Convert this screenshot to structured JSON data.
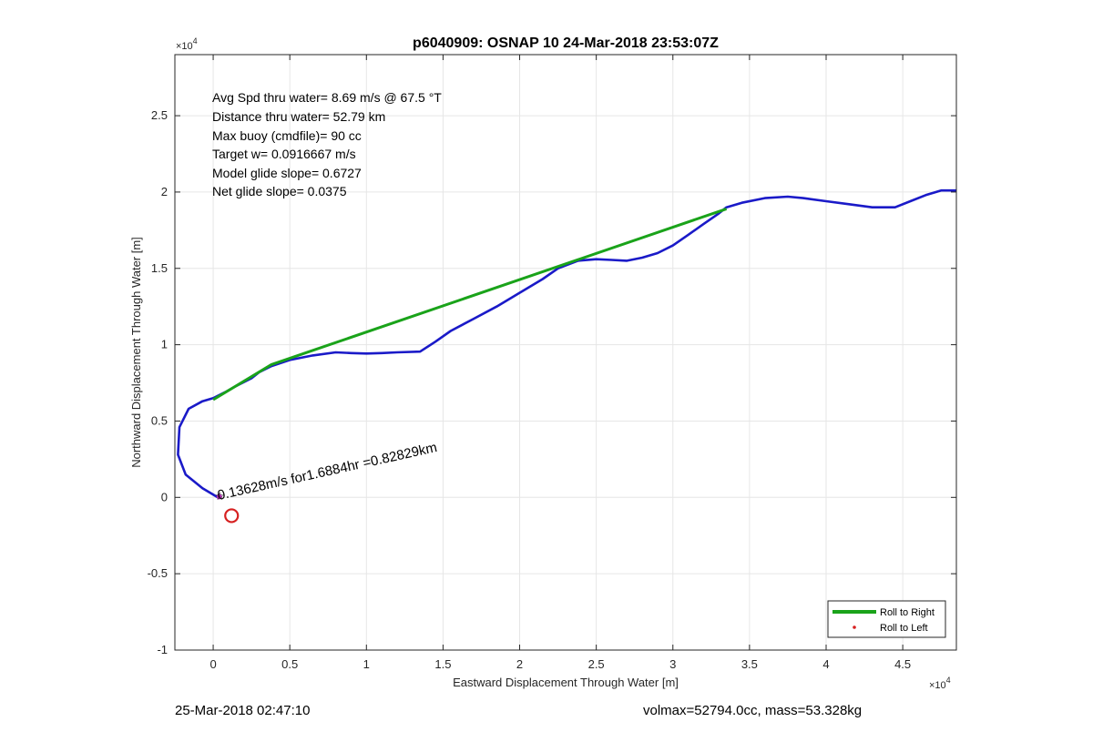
{
  "chart_data": {
    "type": "line",
    "title": "p6040909: OSNAP 10 24-Mar-2018 23:53:07Z",
    "xlabel": "Eastward Displacement Through Water [m]",
    "ylabel": "Northward Displacement Through Water [m]",
    "x_exponent_label": "×10",
    "x_exponent_sup": "4",
    "y_exponent_label": "×10",
    "y_exponent_sup": "4",
    "xlim": [
      -2500,
      48500
    ],
    "ylim": [
      -10000,
      29000
    ],
    "x_ticks": [
      0,
      5000,
      10000,
      15000,
      20000,
      25000,
      30000,
      35000,
      40000,
      45000
    ],
    "x_tick_labels": [
      "0",
      "0.5",
      "1",
      "1.5",
      "2",
      "2.5",
      "3",
      "3.5",
      "4",
      "4.5"
    ],
    "y_ticks": [
      -10000,
      -5000,
      0,
      5000,
      10000,
      15000,
      20000,
      25000
    ],
    "y_tick_labels": [
      "-1",
      "-0.5",
      "0",
      "0.5",
      "1",
      "1.5",
      "2",
      "2.5"
    ],
    "grid": true,
    "legend_position": "bottom-right",
    "annotations": [
      "Avg Spd thru water=  8.69 m/s @  67.5 °T",
      "Distance thru water= 52.79 km",
      "Max buoy (cmdfile)= 90 cc",
      "Target w= 0.0916667 m/s",
      "Model glide slope= 0.6727",
      "Net glide slope= 0.0375"
    ],
    "current_label": "0.13628m/s for1.6884hr =0.82829km",
    "series": [
      {
        "name": "Roll to Right",
        "color": "#1aa31a",
        "x": [
          0,
          3800,
          33500
        ],
        "y": [
          6400,
          8700,
          18900
        ]
      },
      {
        "name": "Roll to Left",
        "color": "#d62020",
        "x": [],
        "y": []
      },
      {
        "name": "",
        "color": "#1a1ac8",
        "x": [
          300,
          -700,
          -1800,
          -2300,
          -2200,
          -1600,
          -700,
          0,
          800,
          1500,
          2500,
          3000,
          3800,
          5000,
          6500,
          8000,
          9000,
          10000,
          11000,
          12000,
          13500,
          14500,
          15500,
          17000,
          18500,
          20000,
          21500,
          22500,
          23800,
          25000,
          26000,
          27000,
          28000,
          29000,
          30000,
          31000,
          32000,
          33000,
          33500,
          34500,
          36000,
          37500,
          38500,
          40000,
          41500,
          43000,
          44500,
          45500,
          46500,
          47500,
          48500
        ],
        "y": [
          0,
          600,
          1500,
          2800,
          4600,
          5800,
          6300,
          6500,
          6900,
          7300,
          7800,
          8200,
          8600,
          9000,
          9300,
          9500,
          9450,
          9420,
          9450,
          9500,
          9550,
          10200,
          10900,
          11700,
          12500,
          13400,
          14300,
          15000,
          15500,
          15600,
          15550,
          15500,
          15700,
          16000,
          16500,
          17200,
          17900,
          18600,
          19000,
          19300,
          19600,
          19700,
          19600,
          19400,
          19200,
          19000,
          19000,
          19400,
          19800,
          20100,
          20100
        ]
      }
    ],
    "markers": {
      "red_circle": {
        "x": 1200,
        "y": -1200,
        "color": "#d62020"
      },
      "magenta_point": {
        "x": 400,
        "y": 50,
        "color": "#c030c0"
      }
    }
  },
  "footer": {
    "timestamp": "25-Mar-2018 02:47:10",
    "vol_mass": "volmax=52794.0cc, mass=53.328kg"
  }
}
